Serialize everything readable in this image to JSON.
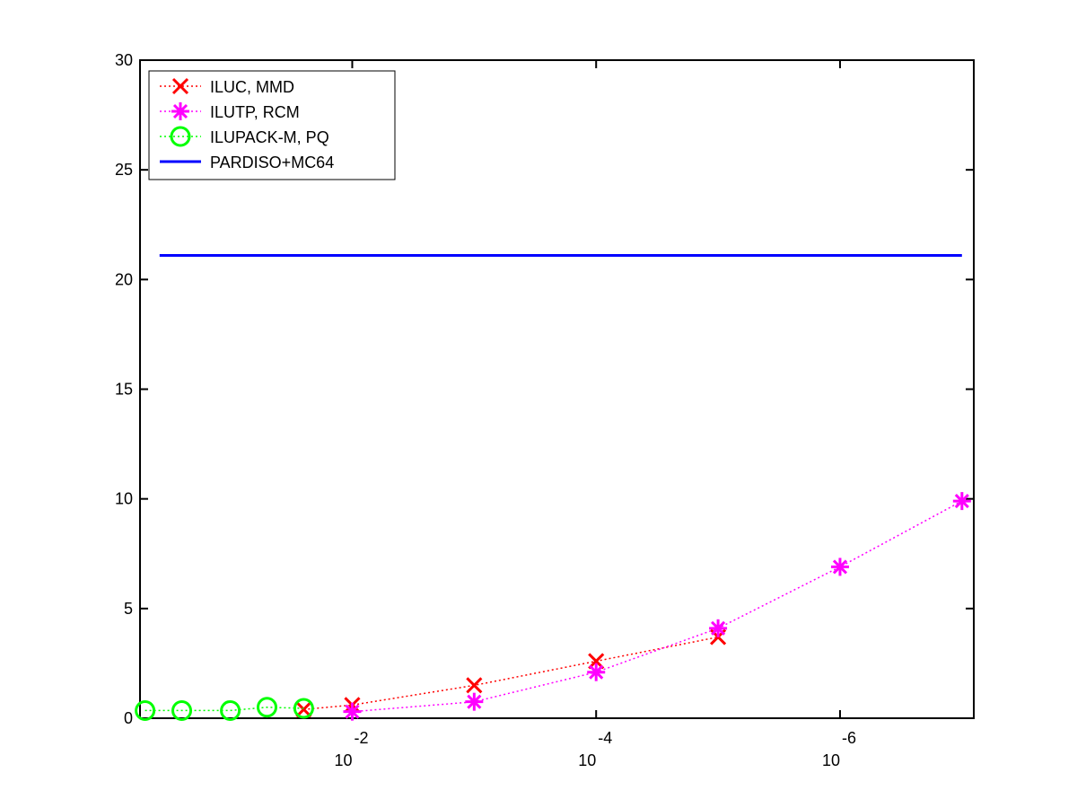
{
  "chart_data": {
    "type": "line",
    "xscale": "log",
    "xlim": [
      0.55,
      8e-08
    ],
    "ylim": [
      0,
      30
    ],
    "yticks": [
      0,
      5,
      10,
      15,
      20,
      25,
      30
    ],
    "xticks": [
      {
        "value": 0.01,
        "label": "10",
        "exponent": "-2"
      },
      {
        "value": 0.0001,
        "label": "10",
        "exponent": "-4"
      },
      {
        "value": 1e-06,
        "label": "10",
        "exponent": "-6"
      }
    ],
    "legend": "upper left",
    "series": [
      {
        "name": "ILUC, MMD",
        "color": "#ff0000",
        "marker": "x",
        "linestyle": "dotted",
        "x": [
          0.025,
          0.01,
          0.001,
          0.0001,
          1e-05
        ],
        "values": [
          0.4,
          0.6,
          1.5,
          2.6,
          3.7
        ]
      },
      {
        "name": "ILUTP, RCM",
        "color": "#ff00ff",
        "marker": "star",
        "linestyle": "dotted",
        "x": [
          0.01,
          0.001,
          0.0001,
          1e-05,
          1e-06,
          1e-07
        ],
        "values": [
          0.3,
          0.75,
          2.1,
          4.1,
          6.9,
          9.9
        ]
      },
      {
        "name": "ILUPACK-M, PQ",
        "color": "#00ff00",
        "marker": "circle",
        "linestyle": "dotted",
        "x": [
          0.5,
          0.25,
          0.1,
          0.05,
          0.025
        ],
        "values": [
          0.35,
          0.35,
          0.35,
          0.5,
          0.45
        ]
      },
      {
        "name": "PARDISO+MC64",
        "color": "#0000ff",
        "marker": "none",
        "linestyle": "solid",
        "x": [
          0.38,
          1e-07
        ],
        "values": [
          21.1,
          21.1
        ]
      }
    ]
  }
}
